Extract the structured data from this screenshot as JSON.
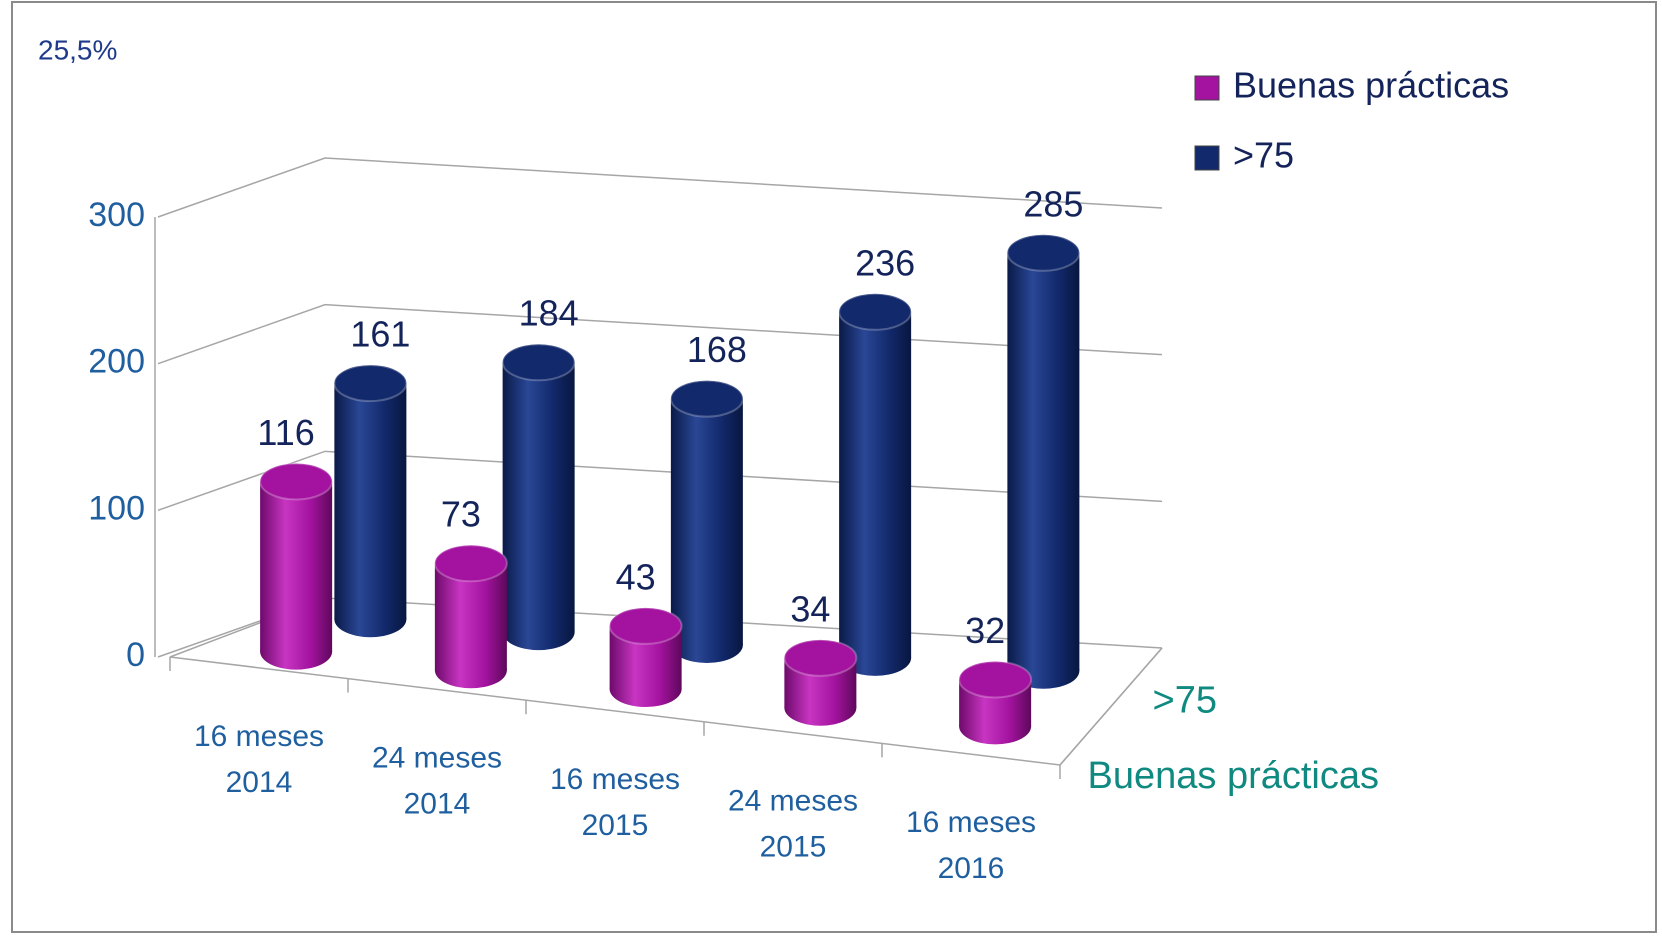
{
  "chart_data": {
    "type": "bar3d",
    "annotation": "25,5%",
    "categories": [
      [
        "16 meses",
        "2014"
      ],
      [
        "24 meses",
        "2014"
      ],
      [
        "16 meses",
        "2015"
      ],
      [
        "24 meses",
        "2015"
      ],
      [
        "16 meses",
        "2016"
      ]
    ],
    "series": [
      {
        "name": "Buenas prácticas",
        "color": "#a3139f",
        "values": [
          116,
          73,
          43,
          34,
          32
        ]
      },
      {
        "name": ">75",
        "color": "#12296b",
        "values": [
          161,
          184,
          168,
          236,
          285
        ]
      }
    ],
    "ylim": [
      0,
      300
    ],
    "yticks": [
      0,
      100,
      200,
      300
    ],
    "grid": true,
    "legend": "top-right"
  }
}
